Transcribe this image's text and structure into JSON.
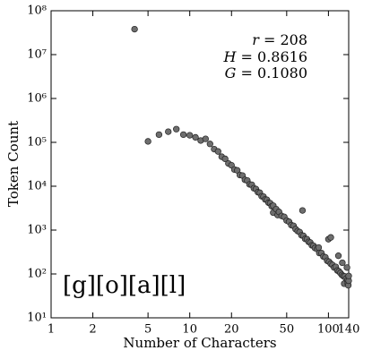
{
  "chart_data": {
    "type": "scatter",
    "xlabel": "Number of Characters",
    "ylabel": "Token Count",
    "log_x": true,
    "log_y": true,
    "xlim": [
      1,
      140
    ],
    "ylim": [
      10,
      100000000
    ],
    "xticks": [
      1,
      2,
      5,
      10,
      20,
      50,
      100,
      140
    ],
    "yticks": [
      {
        "value": 10,
        "label": "10¹"
      },
      {
        "value": 100,
        "label": "10²"
      },
      {
        "value": 1000,
        "label": "10³"
      },
      {
        "value": 10000,
        "label": "10⁴"
      },
      {
        "value": 100000,
        "label": "10⁵"
      },
      {
        "value": 1000000,
        "label": "10⁶"
      },
      {
        "value": 10000000,
        "label": "10⁷"
      },
      {
        "value": 100000000,
        "label": "10⁸"
      }
    ],
    "color": "#6e6e6e",
    "annotations": [
      {
        "symbol": "r",
        "text": "= 208"
      },
      {
        "symbol": "H",
        "text": "= 0.8616"
      },
      {
        "symbol": "G",
        "text": "= 0.1080"
      }
    ],
    "label": "[g][o][a][l]",
    "x": [
      4,
      5,
      6,
      7,
      8,
      9,
      10,
      11,
      12,
      13,
      14,
      15,
      16,
      17,
      18,
      19,
      20,
      21,
      22,
      23,
      24,
      25,
      26,
      27,
      28,
      29,
      30,
      31,
      32,
      33,
      34,
      35,
      36,
      37,
      38,
      39,
      40,
      40,
      42,
      43,
      44,
      46,
      48,
      50,
      52,
      54,
      56,
      58,
      60,
      62,
      64,
      65,
      66,
      68,
      70,
      72,
      74,
      76,
      78,
      80,
      83,
      85,
      86,
      89,
      92,
      95,
      98,
      100,
      101,
      104,
      104,
      107,
      110,
      113,
      116,
      118,
      119,
      122,
      125,
      126,
      128,
      130,
      131,
      134,
      136,
      137,
      138,
      139,
      140,
      140
    ],
    "values": [
      38000000,
      105000,
      150000,
      175000,
      200000,
      150000,
      145000,
      130000,
      110000,
      120000,
      92000,
      70000,
      62000,
      47000,
      42000,
      33000,
      30000,
      24000,
      23000,
      18000,
      17500,
      14000,
      13500,
      11000,
      10800,
      9000,
      8600,
      7300,
      7100,
      5900,
      5800,
      5000,
      4900,
      4200,
      4100,
      3500,
      3600,
      2500,
      3000,
      2200,
      2600,
      2100,
      2000,
      1650,
      1550,
      1300,
      1250,
      1050,
      950,
      900,
      760,
      2800,
      740,
      630,
      620,
      540,
      520,
      450,
      440,
      390,
      370,
      400,
      300,
      300,
      250,
      240,
      200,
      620,
      190,
      680,
      170,
      160,
      140,
      145,
      120,
      260,
      115,
      105,
      95,
      180,
      90,
      60,
      88,
      78,
      140,
      72,
      60,
      55,
      70,
      90
    ]
  }
}
